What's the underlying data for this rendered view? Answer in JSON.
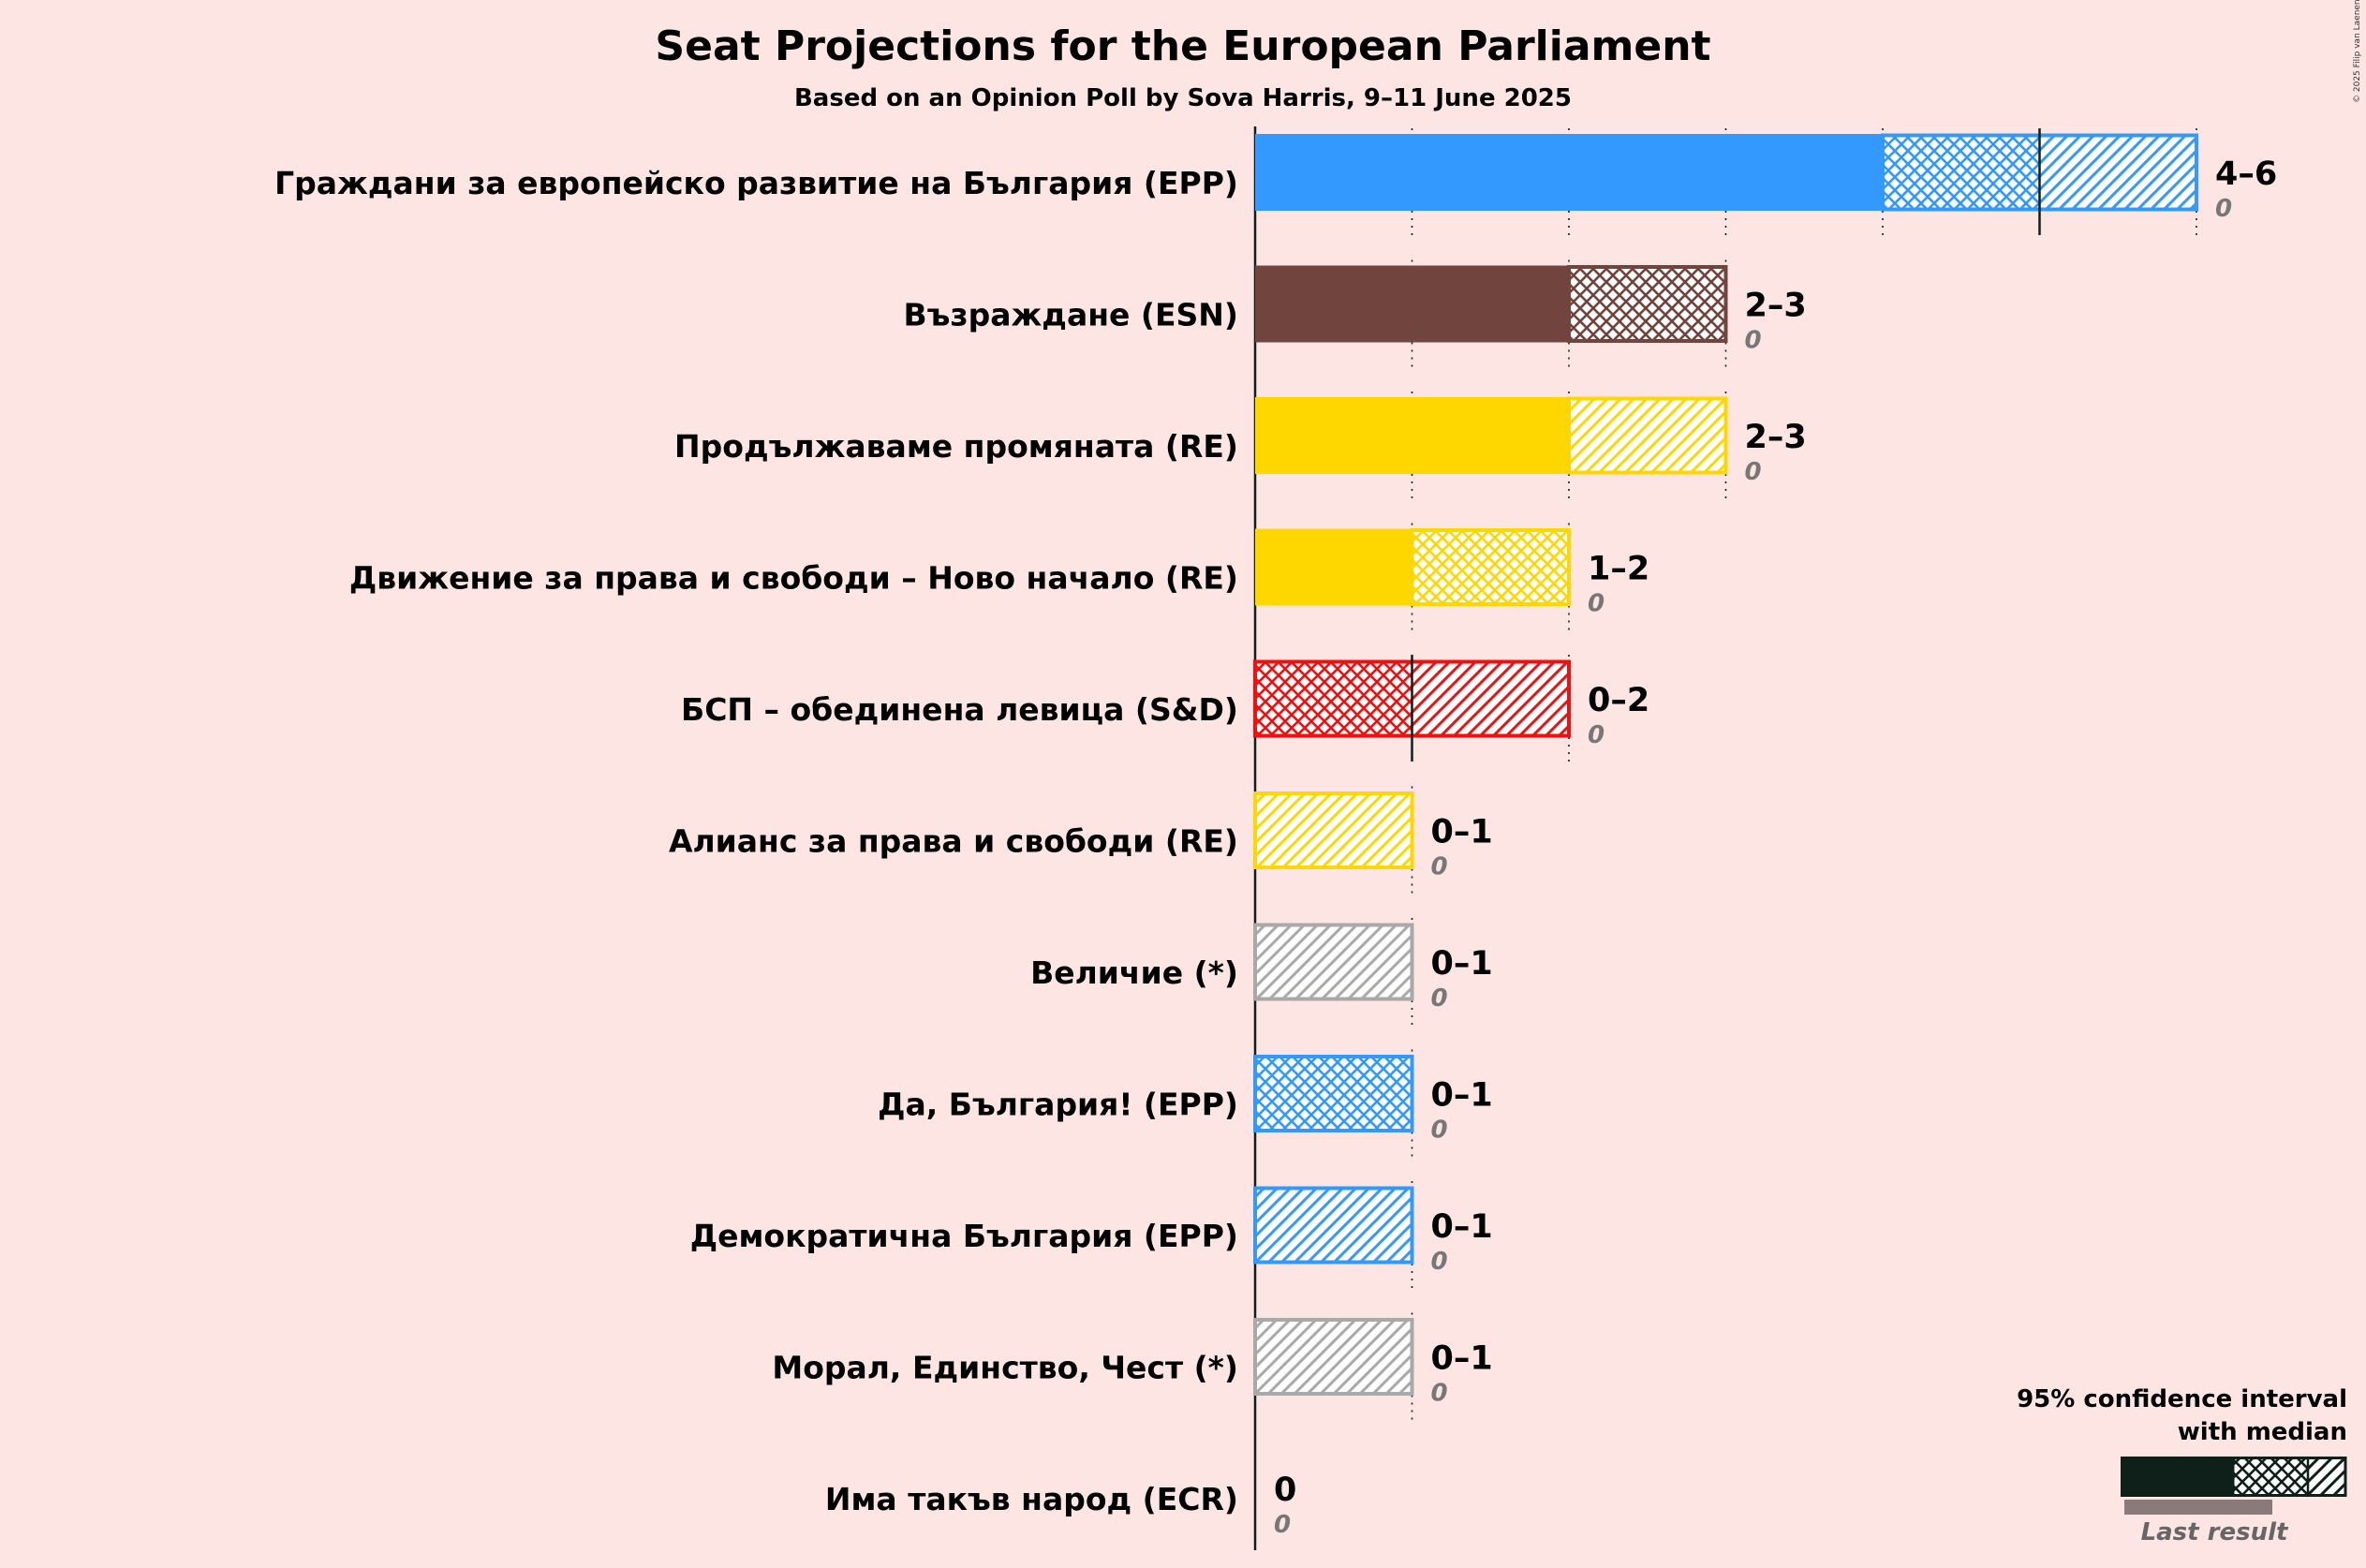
{
  "chart_data": {
    "type": "bar",
    "title": "Seat Projections for the European Parliament",
    "subtitle": "Based on an Opinion Poll by Sova Harris, 9–11 June 2025",
    "copyright": "© 2025 Filip van Laenen",
    "xlim": [
      0,
      6
    ],
    "categories": [
      "Граждани за европейско развитие на България (EPP)",
      "Възраждане (ESN)",
      "Продължаваме промяната (RE)",
      "Движение за права и свободи – Ново начало (RE)",
      "БСП – обединена левица (S&D)",
      "Алианс за права и свободи (RE)",
      "Величие (*)",
      "Да, България! (EPP)",
      "Демократична България (EPP)",
      "Морал, Единство, Чест (*)",
      "Има такъв народ (ECR)"
    ],
    "parties": [
      {
        "name": "Граждани за европейско развитие на България (EPP)",
        "low": 4,
        "median": 5,
        "high": 6,
        "range_label": "4–6",
        "last_result": 0,
        "last_label": "0",
        "color": "#3399FF"
      },
      {
        "name": "Възраждане (ESN)",
        "low": 2,
        "median": 3,
        "high": 3,
        "range_label": "2–3",
        "last_result": 0,
        "last_label": "0",
        "color": "#71453D"
      },
      {
        "name": "Продължаваме промяната (RE)",
        "low": 2,
        "median": 2,
        "high": 3,
        "range_label": "2–3",
        "last_result": 0,
        "last_label": "0",
        "color": "#FFD700"
      },
      {
        "name": "Движение за права и свободи – Ново начало (RE)",
        "low": 1,
        "median": 2,
        "high": 2,
        "range_label": "1–2",
        "last_result": 0,
        "last_label": "0",
        "color": "#FFD700"
      },
      {
        "name": "БСП – обединена левица (S&D)",
        "low": 0,
        "median": 1,
        "high": 2,
        "range_label": "0–2",
        "last_result": 0,
        "last_label": "0",
        "color": "#EE1111"
      },
      {
        "name": "Алианс за права и свободи (RE)",
        "low": 0,
        "median": 0,
        "high": 1,
        "range_label": "0–1",
        "last_result": 0,
        "last_label": "0",
        "color": "#FFD700"
      },
      {
        "name": "Величие (*)",
        "low": 0,
        "median": 0,
        "high": 1,
        "range_label": "0–1",
        "last_result": 0,
        "last_label": "0",
        "color": "#A9A9A9"
      },
      {
        "name": "Да, България! (EPP)",
        "low": 0,
        "median": 1,
        "high": 1,
        "range_label": "0–1",
        "last_result": 0,
        "last_label": "0",
        "color": "#3399FF"
      },
      {
        "name": "Демократична България (EPP)",
        "low": 0,
        "median": 0,
        "high": 1,
        "range_label": "0–1",
        "last_result": 0,
        "last_label": "0",
        "color": "#3399FF"
      },
      {
        "name": "Морал, Единство, Чест (*)",
        "low": 0,
        "median": 0,
        "high": 1,
        "range_label": "0–1",
        "last_result": 0,
        "last_label": "0",
        "color": "#A9A9A9"
      },
      {
        "name": "Има такъв народ (ECR)",
        "low": 0,
        "median": 0,
        "high": 0,
        "range_label": "0",
        "last_result": 0,
        "last_label": "0",
        "color": "#A9A9A9"
      }
    ],
    "legend": {
      "title_line1": "95% confidence interval",
      "title_line2": "with median",
      "last_result_label": "Last result",
      "placement": "bottom-right",
      "color": "#0F1F1A",
      "last_color": "#8A7A7A"
    },
    "grid": true
  }
}
